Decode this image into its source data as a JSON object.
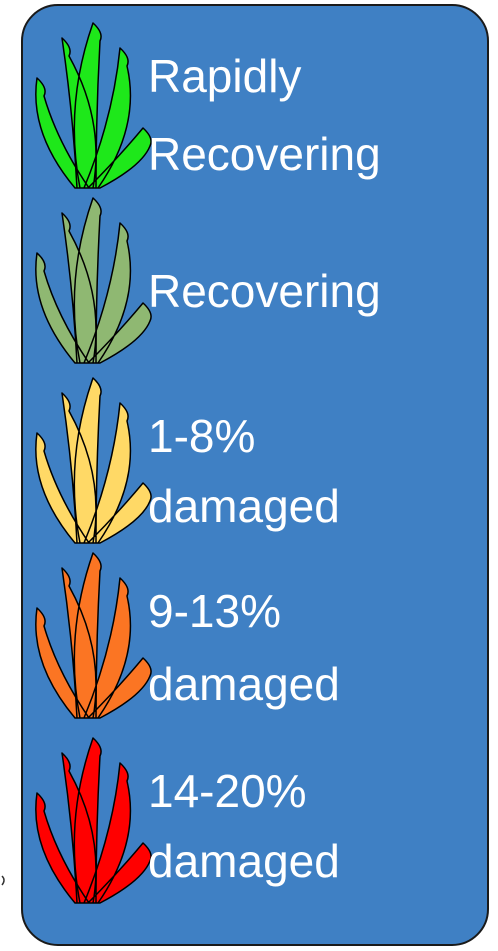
{
  "legend": {
    "items": [
      {
        "lines": [
          "Rapidly",
          "Recovering"
        ],
        "color": "#1ee81a"
      },
      {
        "lines": [
          "Recovering"
        ],
        "color": "#8fb872"
      },
      {
        "lines": [
          "1-8%",
          "damaged"
        ],
        "color": "#ffd966"
      },
      {
        "lines": [
          "9-13%",
          "damaged"
        ],
        "color": "#fb7523"
      },
      {
        "lines": [
          "14-20%",
          "damaged"
        ],
        "color": "#ff0000"
      }
    ]
  }
}
